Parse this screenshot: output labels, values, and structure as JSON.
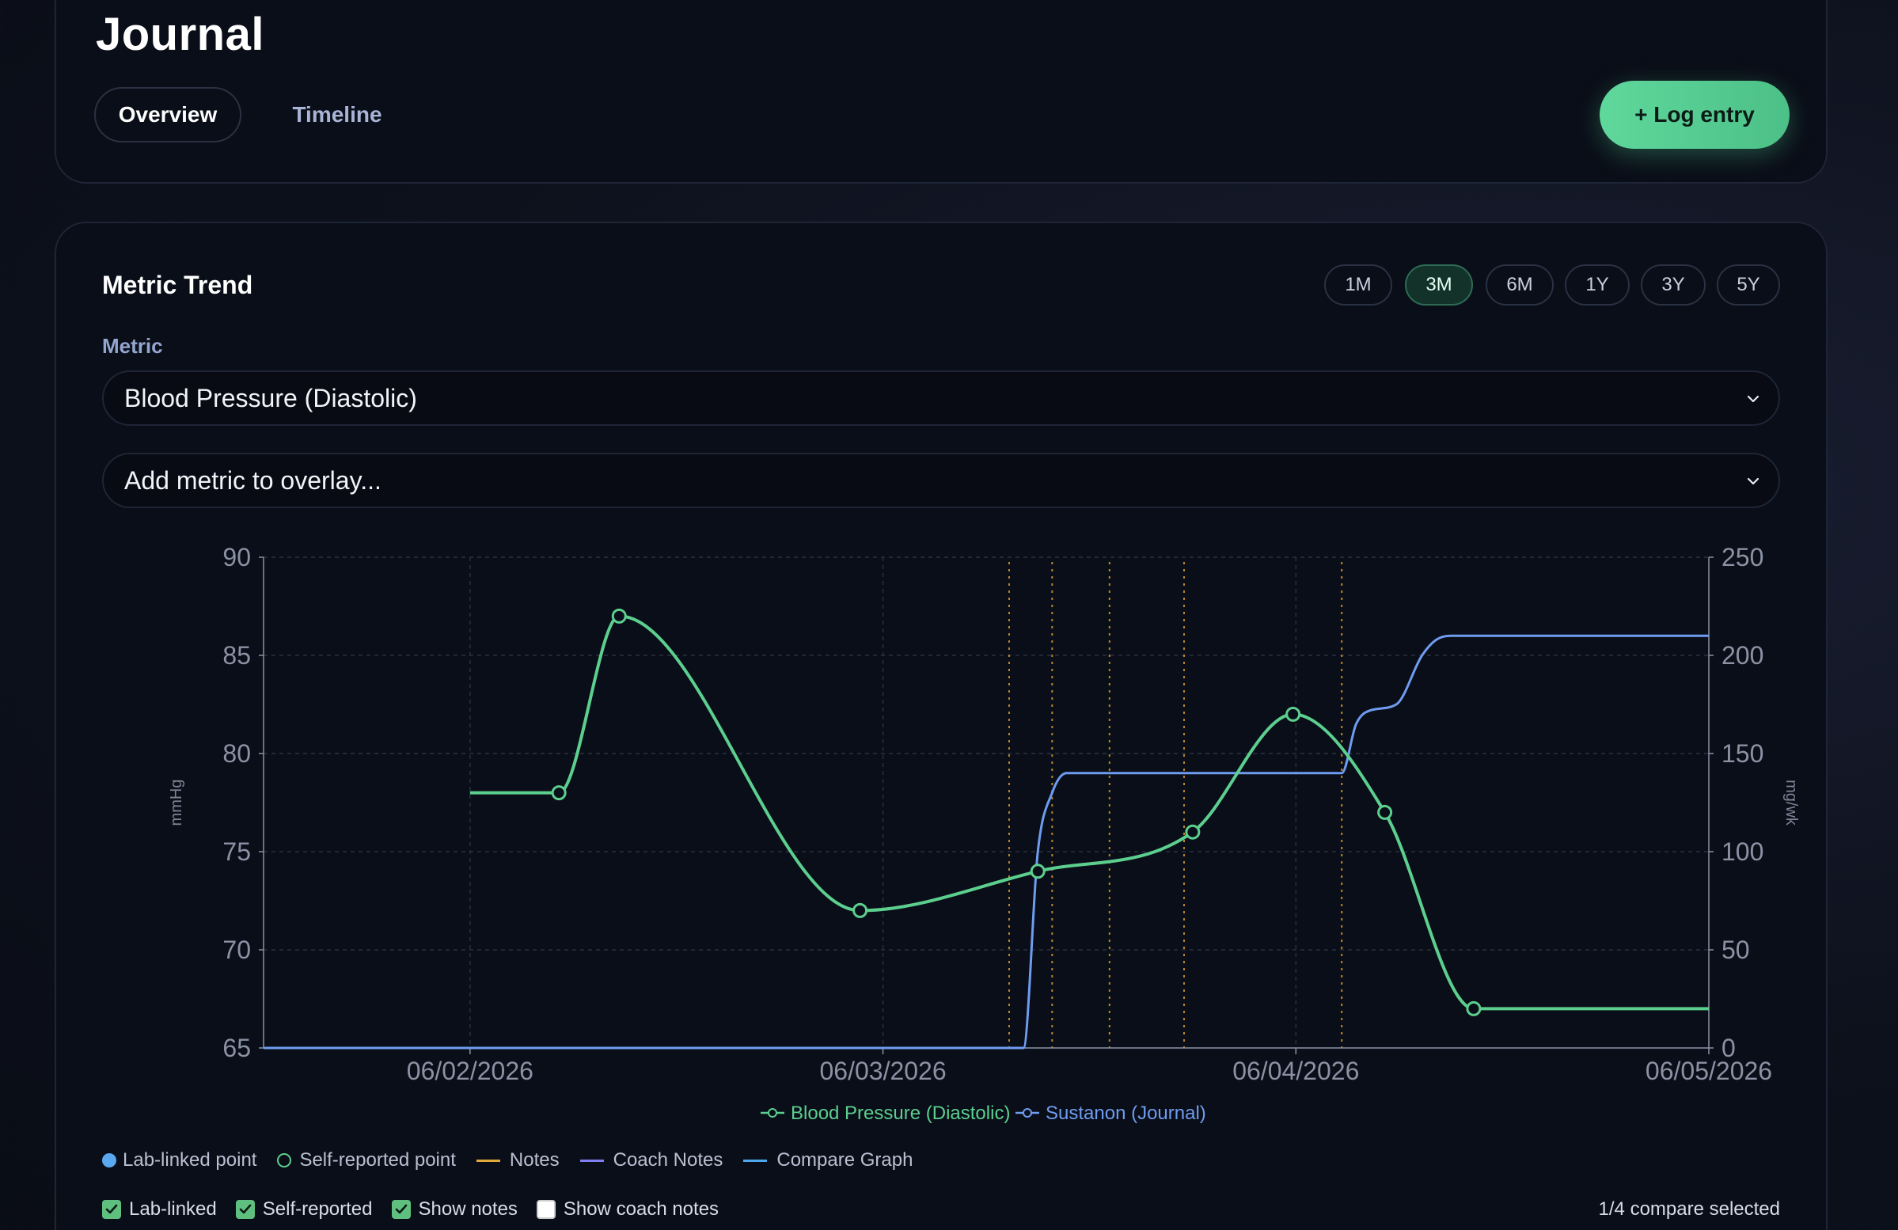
{
  "header": {
    "title": "Journal",
    "tabs": [
      {
        "label": "Overview",
        "active": true
      },
      {
        "label": "Timeline",
        "active": false
      }
    ],
    "log_button": "+ Log entry"
  },
  "metric_trend": {
    "title": "Metric Trend",
    "ranges": [
      {
        "label": "1M",
        "active": false
      },
      {
        "label": "3M",
        "active": true
      },
      {
        "label": "6M",
        "active": false
      },
      {
        "label": "1Y",
        "active": false
      },
      {
        "label": "3Y",
        "active": false
      },
      {
        "label": "5Y",
        "active": false
      }
    ],
    "metric_label": "Metric",
    "metric_value": "Blood Pressure (Diastolic)",
    "overlay_placeholder": "Add metric to overlay..."
  },
  "chart_data": {
    "type": "line",
    "x_ticks": [
      "06/02/2026",
      "06/03/2026",
      "06/04/2026",
      "06/05/2026"
    ],
    "y_left": {
      "label": "mmHg",
      "ticks": [
        65,
        70,
        75,
        80,
        85,
        90
      ],
      "range": [
        65,
        90
      ]
    },
    "y_right": {
      "label": "mg/wk",
      "ticks": [
        0,
        50,
        100,
        150,
        200,
        250
      ],
      "range": [
        0,
        250
      ]
    },
    "grid": true,
    "legend_position": "bottom-center",
    "series": [
      {
        "name": "Blood Pressure (Diastolic)",
        "axis": "left",
        "color": "#5ccf8f",
        "points": [
          {
            "x": "2026-06-02T00:00",
            "y": 78,
            "marker": false
          },
          {
            "x": "2026-06-02T05:10",
            "y": 78,
            "marker": true
          },
          {
            "x": "2026-06-02T08:40",
            "y": 87,
            "marker": true
          },
          {
            "x": "2026-06-02T22:40",
            "y": 72,
            "marker": true
          },
          {
            "x": "2026-06-03T09:00",
            "y": 74,
            "marker": true
          },
          {
            "x": "2026-06-03T18:00",
            "y": 76,
            "marker": true
          },
          {
            "x": "2026-06-03T23:50",
            "y": 82,
            "marker": true
          },
          {
            "x": "2026-06-04T05:10",
            "y": 77,
            "marker": true
          },
          {
            "x": "2026-06-04T10:20",
            "y": 67,
            "marker": true
          },
          {
            "x": "2026-06-05T00:00",
            "y": 67,
            "marker": false
          }
        ]
      },
      {
        "name": "Sustanon (Journal)",
        "axis": "right",
        "color": "#6f9cf0",
        "points": [
          {
            "x": "2026-06-01T12:00",
            "y": 0
          },
          {
            "x": "2026-06-03T08:10",
            "y": 0
          },
          {
            "x": "2026-06-03T09:00",
            "y": 100
          },
          {
            "x": "2026-06-03T09:50",
            "y": 130
          },
          {
            "x": "2026-06-03T10:40",
            "y": 140
          },
          {
            "x": "2026-06-04T02:40",
            "y": 140
          },
          {
            "x": "2026-06-04T03:30",
            "y": 165
          },
          {
            "x": "2026-06-04T04:20",
            "y": 172
          },
          {
            "x": "2026-06-04T05:50",
            "y": 175
          },
          {
            "x": "2026-06-04T07:20",
            "y": 200
          },
          {
            "x": "2026-06-04T08:10",
            "y": 208
          },
          {
            "x": "2026-06-04T09:00",
            "y": 210
          },
          {
            "x": "2026-06-05T00:00",
            "y": 210
          }
        ]
      }
    ],
    "note_markers": [
      "2026-06-03T07:20",
      "2026-06-03T09:50",
      "2026-06-03T13:10",
      "2026-06-03T17:30",
      "2026-06-04T02:40"
    ],
    "x_start": "2026-06-01T12:00",
    "x_end": "2026-06-05T00:00"
  },
  "legend_keys": [
    {
      "label": "Lab-linked point",
      "kind": "dot-filled",
      "color": "#5aa9f0"
    },
    {
      "label": "Self-reported point",
      "kind": "dot-open",
      "color": "#5ccf8f"
    },
    {
      "label": "Notes",
      "kind": "line",
      "color": "#e0a93a"
    },
    {
      "label": "Coach Notes",
      "kind": "line",
      "color": "#7f7ff0"
    },
    {
      "label": "Compare Graph",
      "kind": "line",
      "color": "#4da8f0"
    }
  ],
  "toggles": [
    {
      "label": "Lab-linked",
      "checked": true
    },
    {
      "label": "Self-reported",
      "checked": true
    },
    {
      "label": "Show notes",
      "checked": true
    },
    {
      "label": "Show coach notes",
      "checked": false
    }
  ],
  "compare_status": "1/4 compare selected"
}
